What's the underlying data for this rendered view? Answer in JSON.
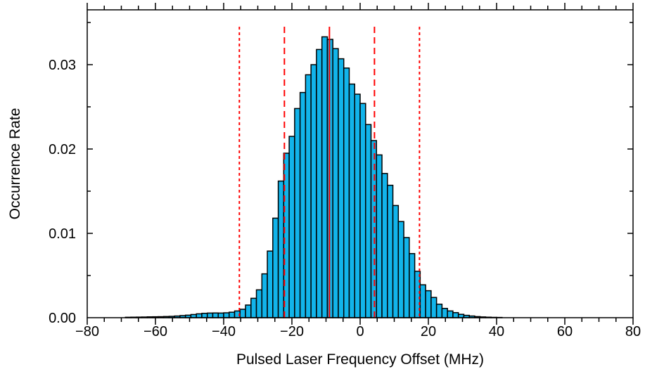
{
  "chart_data": {
    "type": "bar",
    "title": "",
    "xlabel": "Pulsed Laser Frequency Offset  (MHz)",
    "ylabel": "Occurrence Rate",
    "xlim": [
      -80,
      80
    ],
    "ylim": [
      0,
      0.0365
    ],
    "x_ticks": [
      -80,
      -60,
      -40,
      -20,
      0,
      20,
      40,
      60,
      80
    ],
    "x_tick_labels": [
      "−80",
      "−60",
      "−40",
      "−20",
      "0",
      "20",
      "40",
      "60",
      "80"
    ],
    "y_ticks": [
      0,
      0.01,
      0.02,
      0.03
    ],
    "y_tick_labels": [
      "0.00",
      "0.01",
      "0.02",
      "0.03"
    ],
    "bin_width": 1.6,
    "bin_start": -68.8,
    "values": [
      5e-05,
      6e-05,
      7e-05,
      8e-05,
      0.0001,
      0.00011,
      0.00012,
      0.00014,
      0.00016,
      0.0002,
      0.00025,
      0.0003,
      0.00038,
      0.00046,
      0.00052,
      0.00055,
      0.00056,
      0.00055,
      0.00058,
      0.00065,
      0.0008,
      0.001,
      0.0015,
      0.0023,
      0.0033,
      0.0052,
      0.0079,
      0.0118,
      0.0162,
      0.0195,
      0.0215,
      0.0248,
      0.0267,
      0.0288,
      0.03,
      0.0318,
      0.0333,
      0.033,
      0.0319,
      0.0307,
      0.0296,
      0.0277,
      0.0265,
      0.0254,
      0.0229,
      0.021,
      0.0193,
      0.0171,
      0.0157,
      0.0133,
      0.0114,
      0.0095,
      0.0076,
      0.0055,
      0.0039,
      0.0032,
      0.0024,
      0.0016,
      0.0011,
      0.0008,
      0.0006,
      0.0004,
      0.00028,
      0.0002,
      0.00013,
      9e-05,
      6e-05,
      4e-05,
      3e-05
    ],
    "bar_fill": "#12b4ea",
    "bar_edge": "#000000",
    "vlines": [
      {
        "x": -9,
        "style": "solid",
        "color": "#ff0000"
      },
      {
        "x": -22.2,
        "style": "dashed",
        "color": "#ff0000"
      },
      {
        "x": 4.2,
        "style": "dashed",
        "color": "#ff0000"
      },
      {
        "x": -35.4,
        "style": "dotted",
        "color": "#ff0000"
      },
      {
        "x": 17.4,
        "style": "dotted",
        "color": "#ff0000"
      }
    ],
    "grid": false,
    "legend": "none"
  }
}
